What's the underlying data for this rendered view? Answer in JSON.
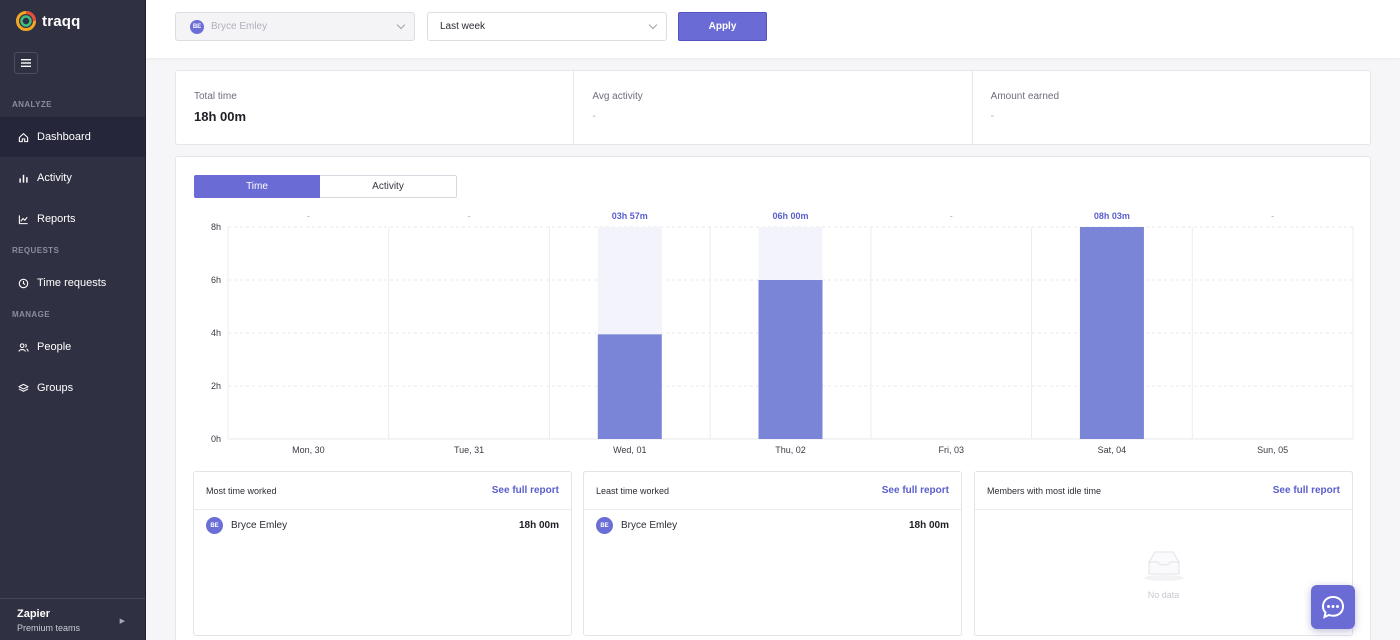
{
  "app": {
    "name": "traqq"
  },
  "sidebar": {
    "sections": {
      "analyze": "ANALYZE",
      "requests": "REQUESTS",
      "manage": "MANAGE"
    },
    "items": [
      {
        "label": "Dashboard",
        "icon": "home-icon",
        "active": true
      },
      {
        "label": "Activity",
        "icon": "bar-chart-icon"
      },
      {
        "label": "Reports",
        "icon": "reports-icon"
      },
      {
        "label": "Time requests",
        "icon": "clock-icon"
      },
      {
        "label": "People",
        "icon": "people-icon"
      },
      {
        "label": "Groups",
        "icon": "layers-icon"
      }
    ],
    "org": {
      "name": "Zapier",
      "plan": "Premium teams"
    }
  },
  "filters": {
    "user": {
      "initials": "BE",
      "name": "Bryce Emley"
    },
    "period": "Last week",
    "apply_label": "Apply"
  },
  "summary": [
    {
      "label": "Total time",
      "value": "18h 00m"
    },
    {
      "label": "Avg activity",
      "value": "-"
    },
    {
      "label": "Amount earned",
      "value": "-"
    }
  ],
  "tabs": {
    "time": "Time",
    "activity": "Activity"
  },
  "chart_data": {
    "type": "bar",
    "categories": [
      "Mon, 30",
      "Tue, 31",
      "Wed, 01",
      "Thu, 02",
      "Fri, 03",
      "Sat, 04",
      "Sun, 05"
    ],
    "values": [
      0,
      0,
      3.95,
      6.0,
      0,
      8.05,
      0
    ],
    "data_labels": [
      "-",
      "-",
      "03h 57m",
      "06h 00m",
      "-",
      "08h 03m",
      "-"
    ],
    "y_ticks": [
      "0h",
      "2h",
      "4h",
      "6h",
      "8h"
    ],
    "ylim": [
      0,
      8
    ],
    "grid": true,
    "bar_color": "#7b85d8",
    "track_color": "#f3f4fb"
  },
  "cards": {
    "most": {
      "title": "Most time worked",
      "link": "See full report",
      "rows": [
        {
          "initials": "BE",
          "name": "Bryce Emley",
          "duration": "18h 00m"
        }
      ]
    },
    "least": {
      "title": "Least time worked",
      "link": "See full report",
      "rows": [
        {
          "initials": "BE",
          "name": "Bryce Emley",
          "duration": "18h 00m"
        }
      ]
    },
    "idle": {
      "title": "Members with most idle time",
      "link": "See full report",
      "empty_text": "No data"
    }
  },
  "colors": {
    "accent": "#6b6bd6",
    "sidebar": "#2f3142"
  }
}
